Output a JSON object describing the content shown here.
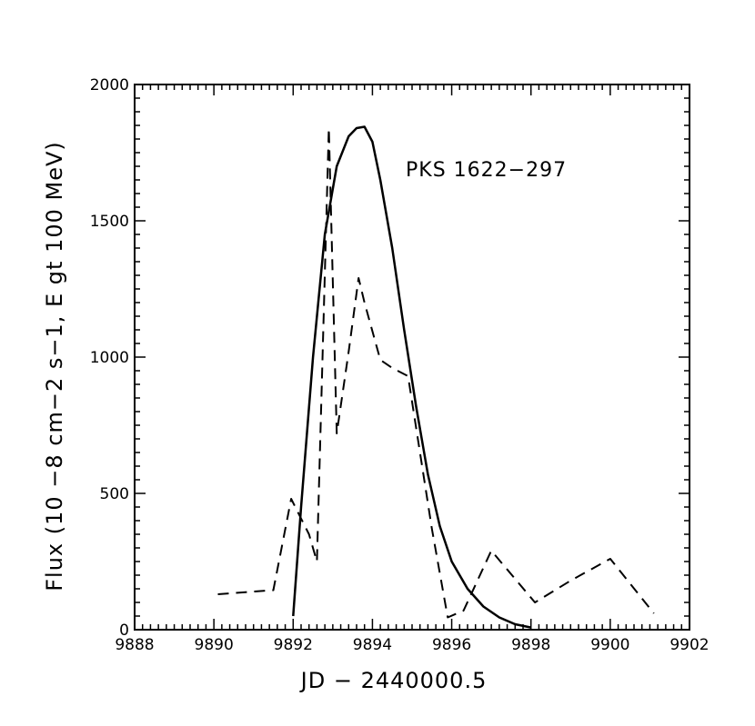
{
  "chart_data": {
    "type": "line",
    "xlabel": "JD  −  2440000.5",
    "ylabel": "Flux  (10 −8 cm−2 s−1, E gt 100 MeV)",
    "annotation": "PKS  1622−297",
    "xlim": [
      9888,
      9902
    ],
    "ylim": [
      0,
      2000
    ],
    "x_ticks": [
      9888,
      9890,
      9892,
      9894,
      9896,
      9898,
      9900,
      9902
    ],
    "y_ticks": [
      0,
      500,
      1000,
      1500,
      2000
    ],
    "x_tick_labels": [
      "9888",
      "9890",
      "9892",
      "9894",
      "9896",
      "9898",
      "9900",
      "9902"
    ],
    "y_tick_labels": [
      "0",
      "500",
      "1000",
      "1500",
      "2000"
    ],
    "grid": false,
    "series": [
      {
        "style": "dashed",
        "color": "#000000",
        "x": [
          9890.1,
          9891.5,
          9891.95,
          9892.4,
          9892.6,
          9892.9,
          9893.1,
          9893.4,
          9893.65,
          9893.8,
          9894.2,
          9894.5,
          9894.9,
          9895.5,
          9895.9,
          9896.3,
          9897.0,
          9898.1,
          9899.0,
          9900.0,
          9901.1
        ],
        "y": [
          130,
          145,
          480,
          350,
          250,
          1840,
          720,
          1020,
          1290,
          1200,
          990,
          960,
          930,
          370,
          45,
          70,
          290,
          100,
          180,
          260,
          60
        ]
      },
      {
        "style": "solid",
        "color": "#000000",
        "x": [
          9892.0,
          9892.2,
          9892.5,
          9892.8,
          9893.1,
          9893.4,
          9893.6,
          9893.8,
          9894.0,
          9894.2,
          9894.5,
          9894.8,
          9895.1,
          9895.4,
          9895.7,
          9896.0,
          9896.4,
          9896.8,
          9897.2,
          9897.6,
          9898.0
        ],
        "y": [
          50,
          450,
          1000,
          1450,
          1700,
          1810,
          1840,
          1845,
          1790,
          1650,
          1400,
          1100,
          820,
          570,
          380,
          250,
          150,
          85,
          45,
          20,
          8
        ]
      }
    ]
  }
}
